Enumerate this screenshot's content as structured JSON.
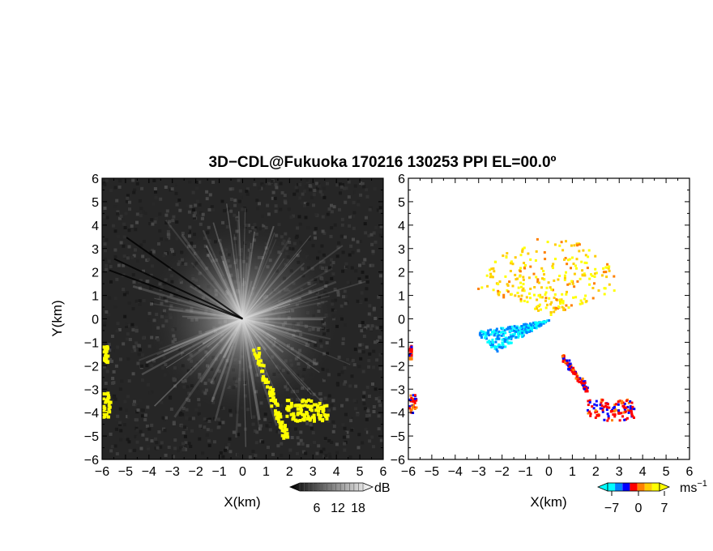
{
  "chart_data": {
    "title": "3D−CDL@Fukuoka 170216 130253 PPI EL=00.0º",
    "panels": [
      {
        "type": "heatmap",
        "xlabel": "X(km)",
        "ylabel": "Y(km)",
        "xlim": [
          -6,
          6
        ],
        "ylim": [
          -6,
          6
        ],
        "x_ticks": [
          "−6",
          "−5",
          "−4",
          "−3",
          "−2",
          "−1",
          "0",
          "1",
          "2",
          "3",
          "4",
          "5",
          "6"
        ],
        "y_ticks": [
          "6",
          "5",
          "4",
          "3",
          "2",
          "1",
          "0",
          "−1",
          "−2",
          "−3",
          "−4",
          "−5",
          "−6"
        ],
        "colorbar": {
          "unit": "dB",
          "ticks": [
            "6",
            "12",
            "18"
          ],
          "highlight_color": "#ffff00"
        },
        "highlight_regions": [
          {
            "x": [
              0.5,
              1.8
            ],
            "y": [
              -5.0,
              -1.3
            ]
          },
          {
            "x": [
              1.8,
              3.6
            ],
            "y": [
              -4.3,
              -3.4
            ]
          },
          {
            "x": [
              -6.0,
              -5.7
            ],
            "y": [
              -4.3,
              -3.1
            ]
          },
          {
            "x": [
              -6.0,
              -5.8
            ],
            "y": [
              -1.8,
              -1.1
            ]
          }
        ]
      },
      {
        "type": "scatter",
        "xlabel": "X(km)",
        "xlim": [
          -6,
          6
        ],
        "ylim": [
          -6,
          6
        ],
        "x_ticks": [
          "−6",
          "−5",
          "−4",
          "−3",
          "−2",
          "−1",
          "0",
          "1",
          "2",
          "3",
          "4",
          "5",
          "6"
        ],
        "y_ticks": [
          "6",
          "5",
          "4",
          "3",
          "2",
          "1",
          "0",
          "−1",
          "−2",
          "−3",
          "−4",
          "−5",
          "−6"
        ],
        "colorbar": {
          "unit": "ms",
          "unit_exponent": "−1",
          "ticks": [
            "−7",
            "0",
            "7"
          ],
          "colors": [
            "#00ffff",
            "#0080ff",
            "#0000ff",
            "#ff0000",
            "#ff8000",
            "#ffcc00",
            "#ffff00"
          ]
        },
        "clusters": [
          {
            "x": [
              -1.5,
              1.5
            ],
            "y": [
              0.2,
              3.5
            ],
            "v": [
              2,
              7
            ]
          },
          {
            "x": [
              -3.0,
              0.0
            ],
            "y": [
              -1.8,
              0.0
            ],
            "v": [
              -7,
              -3
            ]
          },
          {
            "x": [
              0.5,
              1.6
            ],
            "y": [
              -3.0,
              -1.5
            ],
            "v": [
              -2,
              2
            ]
          },
          {
            "x": [
              1.6,
              3.6
            ],
            "y": [
              -4.3,
              -3.4
            ],
            "v": [
              -2,
              2
            ]
          },
          {
            "x": [
              -6.0,
              -5.7
            ],
            "y": [
              -4.0,
              -3.2
            ],
            "v": [
              -2,
              2
            ]
          },
          {
            "x": [
              -6.0,
              -5.9
            ],
            "y": [
              -1.7,
              -1.1
            ],
            "v": [
              -2,
              2
            ]
          }
        ]
      }
    ]
  }
}
